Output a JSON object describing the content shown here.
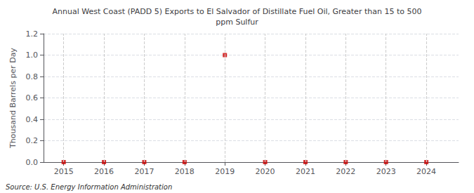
{
  "chart_data": {
    "type": "scatter",
    "title": "Annual West Coast (PADD 5) Exports to El Salvador of Distillate Fuel Oil, Greater than 15 to 500\nppm Sulfur",
    "ylabel": "Thousand Barrels per Day",
    "annotation": "Source: U.S. Energy Information Administration",
    "x": [
      2015,
      2016,
      2017,
      2018,
      2019,
      2020,
      2021,
      2022,
      2023,
      2024
    ],
    "values": [
      0.0,
      0.0,
      0.0,
      0.0,
      1.0,
      0.0,
      0.0,
      0.0,
      0.0,
      0.0
    ],
    "xlim": [
      2014.5,
      2024.8
    ],
    "ylim": [
      0.0,
      1.2
    ],
    "xticks": [
      2015,
      2016,
      2017,
      2018,
      2019,
      2020,
      2021,
      2022,
      2023,
      2024
    ],
    "yticks": [
      {
        "value": 0.0,
        "label": "0.0"
      },
      {
        "value": 0.2,
        "label": "0.2"
      },
      {
        "value": 0.4,
        "label": "0.4"
      },
      {
        "value": 0.6,
        "label": "0.6"
      },
      {
        "value": 0.8,
        "label": "0.8"
      },
      {
        "value": 1.0,
        "label": "1.0"
      },
      {
        "value": 1.2,
        "label": "1.2"
      }
    ],
    "grid": true,
    "marker": "square",
    "color": "#cc0000"
  }
}
